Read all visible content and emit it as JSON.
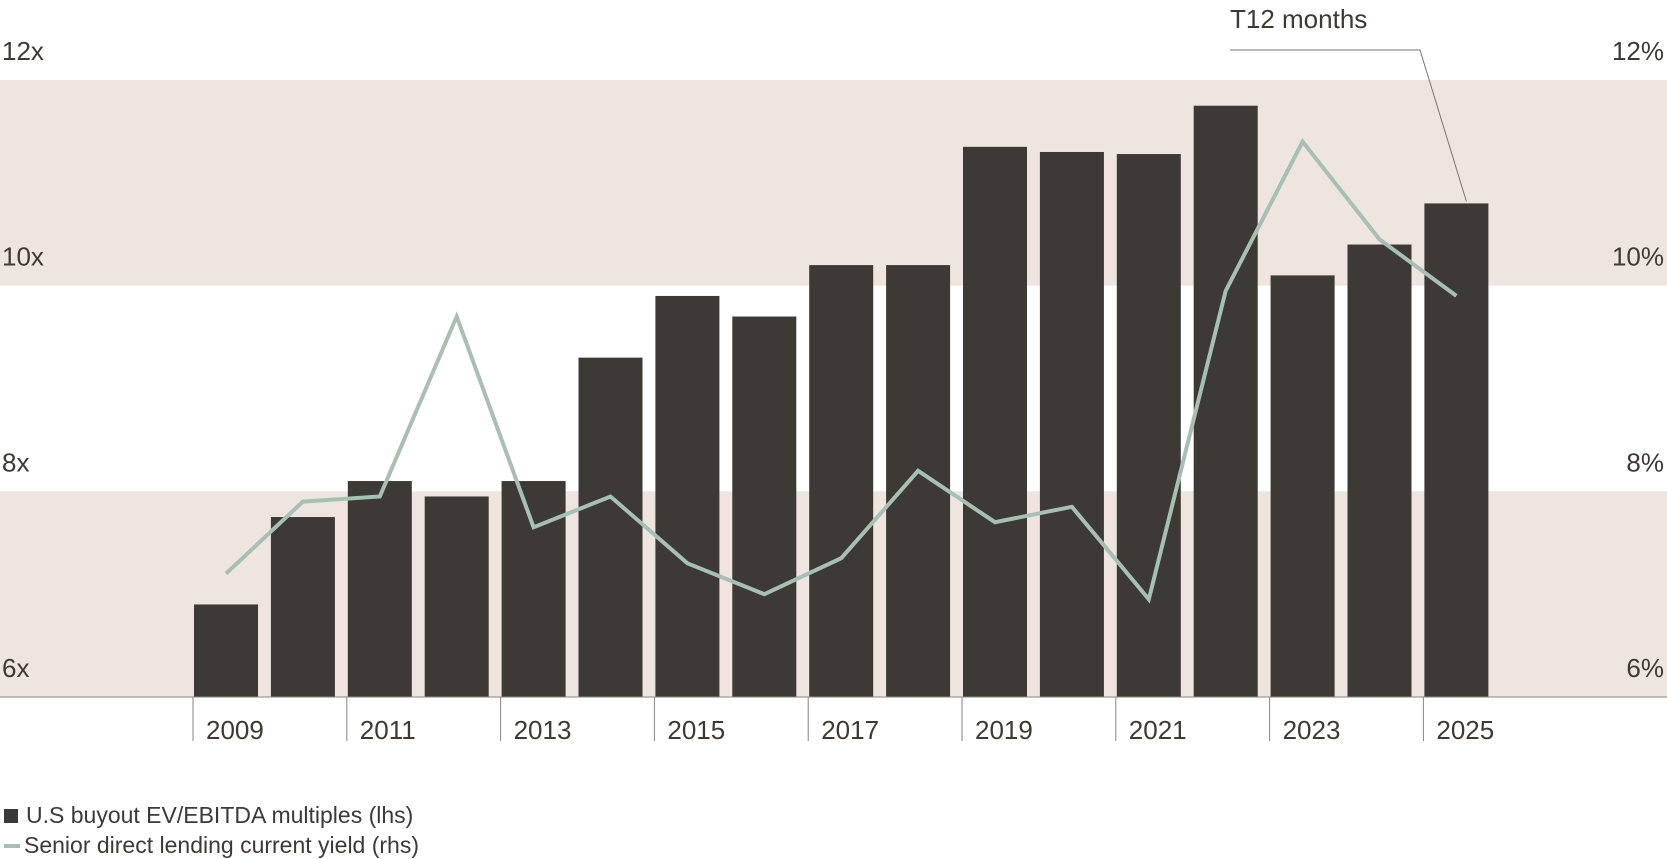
{
  "chart_data": {
    "type": "bar",
    "categories": [
      "2009",
      "2010",
      "2011",
      "2012",
      "2013",
      "2014",
      "2015",
      "2016",
      "2017",
      "2018",
      "2019",
      "2020",
      "2021",
      "2022",
      "2023",
      "2024",
      "2025"
    ],
    "x_tick_labels": [
      "2009",
      "2011",
      "2013",
      "2015",
      "2017",
      "2019",
      "2021",
      "2023",
      "2025"
    ],
    "series": [
      {
        "name": "U.S buyout EV/EBITDA multiples (lhs)",
        "type": "bar",
        "axis": "left",
        "color": "#3d3935",
        "values": [
          6.9,
          7.75,
          8.1,
          7.95,
          8.1,
          9.3,
          9.9,
          9.7,
          10.2,
          10.2,
          11.35,
          11.3,
          11.28,
          11.75,
          10.1,
          10.4,
          10.8
        ]
      },
      {
        "name": "Senior direct lending current yield (rhs)",
        "type": "line",
        "axis": "right",
        "color": "#a8bfb3",
        "values": [
          7.2,
          7.9,
          7.95,
          9.7,
          7.65,
          7.95,
          7.3,
          7.0,
          7.35,
          8.2,
          7.7,
          7.85,
          6.95,
          9.95,
          11.4,
          10.45,
          9.9
        ]
      }
    ],
    "y_left": {
      "range": [
        6,
        12
      ],
      "ticks": [
        6,
        8,
        10,
        12
      ],
      "tick_labels": [
        "6x",
        "8x",
        "10x",
        "12x"
      ]
    },
    "y_right": {
      "range": [
        6,
        12
      ],
      "ticks": [
        6,
        8,
        10,
        12
      ],
      "tick_labels": [
        "6%",
        "8%",
        "10%",
        "12%"
      ]
    },
    "bands": [
      {
        "from": 6,
        "to": 8
      },
      {
        "from": 10,
        "to": 12
      }
    ],
    "band_color": "#efe5e0",
    "annotation": {
      "text": "T12 months",
      "target_category": "2025"
    },
    "legend_position": "bottom-left"
  }
}
